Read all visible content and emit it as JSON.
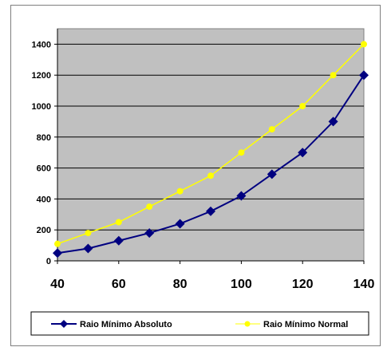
{
  "chart_data": {
    "type": "line",
    "title": "",
    "xlabel": "",
    "ylabel": "",
    "x": [
      40,
      50,
      60,
      70,
      80,
      90,
      100,
      110,
      120,
      130,
      140
    ],
    "x_ticks": [
      "40",
      "60",
      "80",
      "100",
      "120",
      "140"
    ],
    "y_ticks": [
      "0",
      "200",
      "400",
      "600",
      "800",
      "1000",
      "1200",
      "1400"
    ],
    "xlim": [
      40,
      140
    ],
    "ylim": [
      0,
      1500
    ],
    "grid": "horizontal",
    "plot_background": "#c0c0c0",
    "legend_position": "bottom",
    "series": [
      {
        "name": "Raio Mínimo Absoluto",
        "color": "#000080",
        "marker": "diamond",
        "values": [
          50,
          80,
          130,
          180,
          240,
          320,
          420,
          560,
          700,
          900,
          1200
        ]
      },
      {
        "name": "Raio Mínimo Normal",
        "color": "#ffff00",
        "marker": "circle",
        "values": [
          110,
          180,
          250,
          350,
          450,
          550,
          700,
          850,
          1000,
          1200,
          1400
        ]
      }
    ]
  }
}
